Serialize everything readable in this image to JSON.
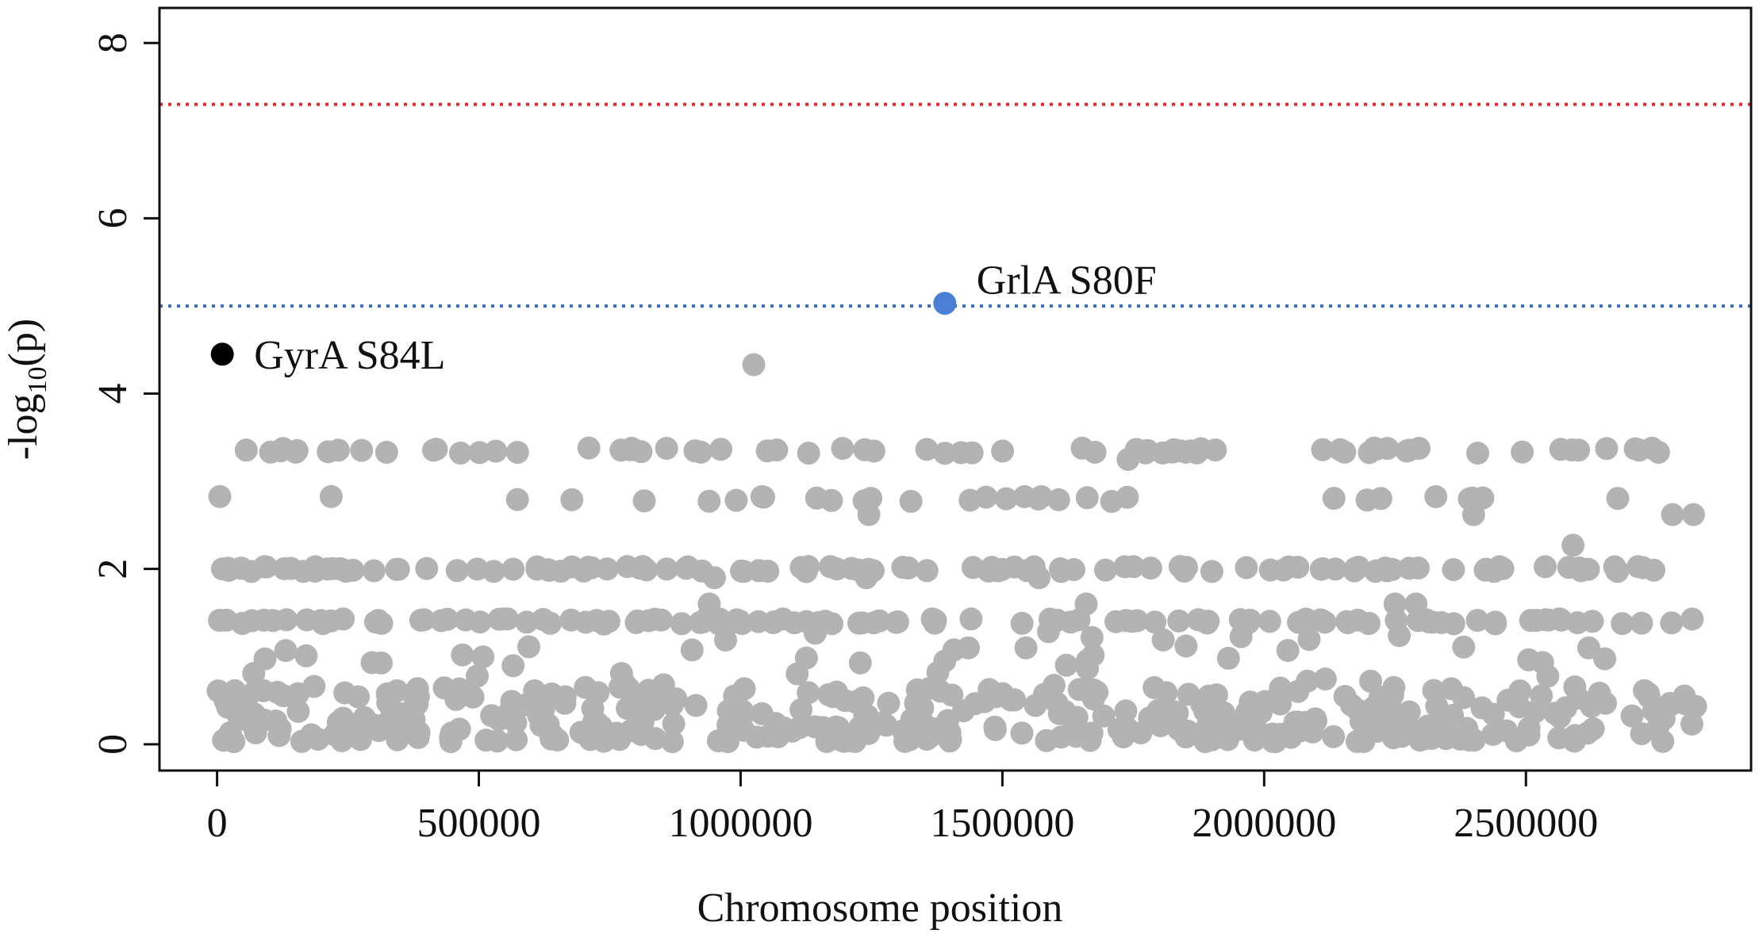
{
  "chart_data": {
    "type": "scatter",
    "title": "",
    "xlabel": "Chromosome position",
    "ylabel_main": "-log",
    "ylabel_sub": "10",
    "ylabel_tail": "(p)",
    "xlim": [
      -110000,
      2930000
    ],
    "ylim": [
      -0.3,
      8.4
    ],
    "x_ticks": [
      0,
      500000,
      1000000,
      1500000,
      2000000,
      2500000
    ],
    "x_tick_labels": [
      "0",
      "500000",
      "1000000",
      "1500000",
      "2000000",
      "2500000"
    ],
    "y_ticks": [
      0,
      2,
      4,
      6,
      8
    ],
    "y_tick_labels": [
      "0",
      "2",
      "4",
      "6",
      "8"
    ],
    "thresholds": [
      {
        "value": 7.3,
        "color": "#e8262b"
      },
      {
        "value": 5.0,
        "color": "#3a6fc4"
      }
    ],
    "colors": {
      "background_points": "#b3b3b3",
      "highlight": "#4a7fd6",
      "gyrA": "#000000"
    },
    "levels": [
      3.35,
      2.8,
      2.0,
      1.4
    ],
    "highlights": [
      {
        "label": "GrlA S80F",
        "x": 1390000,
        "y": 5.03,
        "color": "#4a7fd6"
      },
      {
        "label": "GyrA S84L",
        "x": 10000,
        "y": 4.45,
        "color": "#000000"
      }
    ],
    "other_points": [
      {
        "x": 1025000,
        "y": 4.33
      },
      {
        "x": 1245000,
        "y": 2.62
      },
      {
        "x": 1390000,
        "y": 3.32
      },
      {
        "x": 1740000,
        "y": 3.25
      },
      {
        "x": 2400000,
        "y": 2.62
      },
      {
        "x": 2780000,
        "y": 2.62
      },
      {
        "x": 2590000,
        "y": 2.27
      },
      {
        "x": 2820000,
        "y": 2.62
      },
      {
        "x": 1570000,
        "y": 1.9
      },
      {
        "x": 1240000,
        "y": 1.9
      },
      {
        "x": 950000,
        "y": 1.9
      },
      {
        "x": 940000,
        "y": 1.6
      },
      {
        "x": 2250000,
        "y": 1.6
      },
      {
        "x": 2290000,
        "y": 1.6
      },
      {
        "x": 1660000,
        "y": 1.6
      },
      {
        "x": 1390000,
        "y": 0.95
      },
      {
        "x": 1435000,
        "y": 1.1
      },
      {
        "x": 1545000,
        "y": 1.1
      },
      {
        "x": 2620000,
        "y": 1.1
      }
    ]
  }
}
